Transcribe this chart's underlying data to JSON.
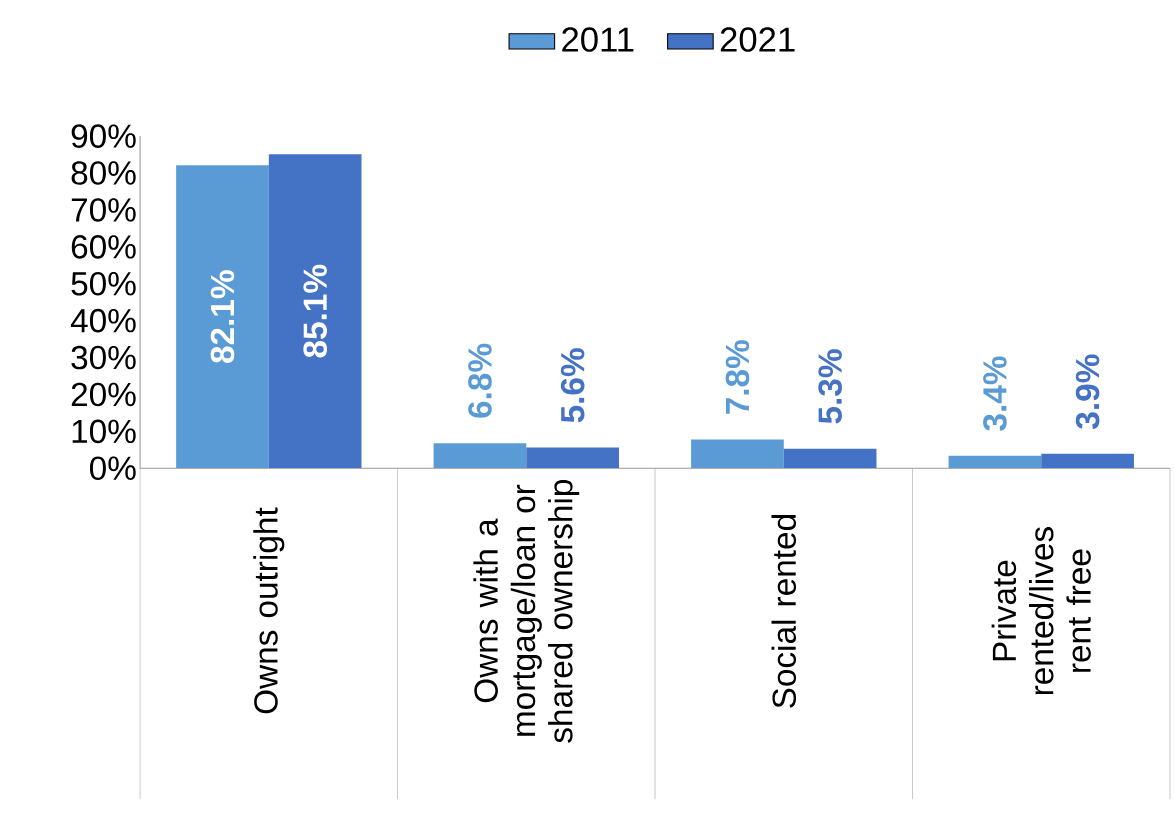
{
  "chart_data": {
    "type": "bar",
    "categories": [
      "Owns outright",
      "Owns with a mortgage/loan or shared ownership",
      "Social rented",
      "Private rented/lives rent free"
    ],
    "series": [
      {
        "name": "2011",
        "color": "#5b9bd5",
        "values": [
          82.1,
          6.8,
          7.8,
          3.4
        ],
        "value_labels": [
          "82.1%",
          "6.8%",
          "7.8%",
          "3.4%"
        ]
      },
      {
        "name": "2021",
        "color": "#4472c4",
        "values": [
          85.1,
          5.6,
          5.3,
          3.9
        ],
        "value_labels": [
          "85.1%",
          "5.6%",
          "5.3%",
          "3.9%"
        ]
      }
    ],
    "ylim": [
      0,
      90
    ],
    "yticks": [
      {
        "value": 0,
        "label": "0%"
      },
      {
        "value": 10,
        "label": "10%"
      },
      {
        "value": 20,
        "label": "20%"
      },
      {
        "value": 30,
        "label": "30%"
      },
      {
        "value": 40,
        "label": "40%"
      },
      {
        "value": 50,
        "label": "50%"
      },
      {
        "value": 60,
        "label": "60%"
      },
      {
        "value": 70,
        "label": "70%"
      },
      {
        "value": 80,
        "label": "80%"
      },
      {
        "value": 90,
        "label": "90%"
      }
    ],
    "legend": "top",
    "grid": false
  }
}
